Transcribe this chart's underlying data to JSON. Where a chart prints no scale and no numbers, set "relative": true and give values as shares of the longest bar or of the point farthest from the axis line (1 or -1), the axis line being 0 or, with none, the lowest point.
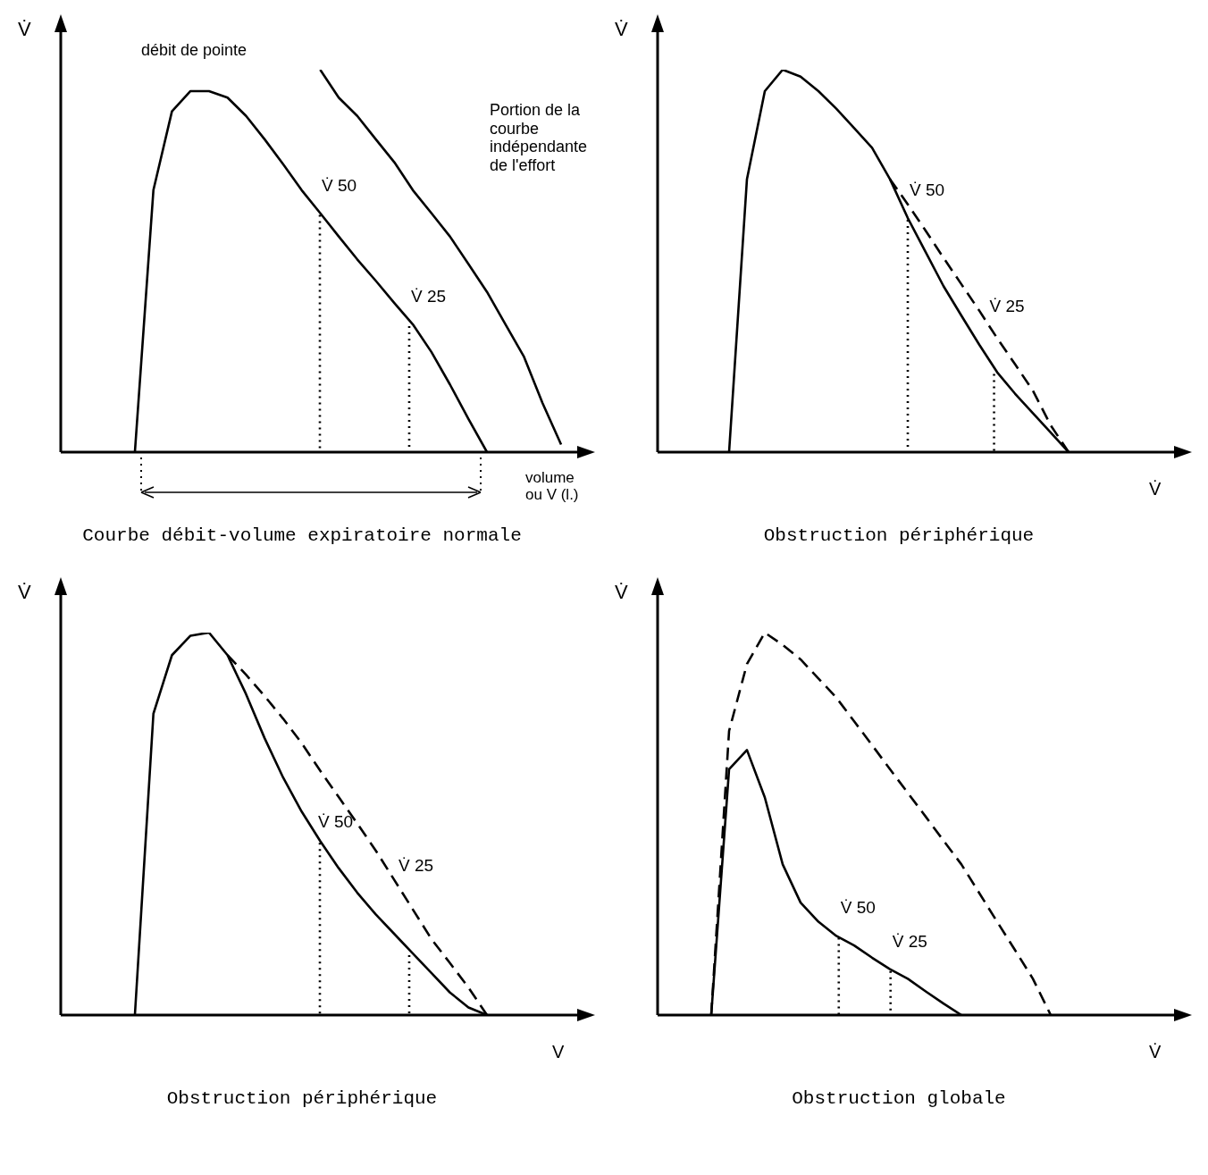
{
  "chart_data": [
    {
      "type": "line",
      "relative": true,
      "title": "Courbe débit-volume expiratoire normale",
      "xlabel": "volume ou V (l.)",
      "ylabel": "V̇",
      "legend": false,
      "grid": false,
      "marker": "none",
      "annotations": [
        "débit de pointe",
        "Portion de la courbe indépendante de l'effort",
        "V̇ 50",
        "V̇ 25"
      ],
      "categories": [
        null,
        null,
        null,
        null,
        null,
        null,
        null,
        null,
        null,
        null,
        null,
        null,
        null,
        null,
        null,
        null,
        null,
        null,
        null,
        null,
        null,
        null,
        null,
        null,
        null,
        null,
        null,
        null
      ],
      "series": [
        {
          "color": "#000000",
          "line_style": "solid",
          "values": [
            null,
            null,
            null,
            null,
            0,
            0.685,
            0.891,
            0.944,
            0.944,
            0.927,
            0.879,
            0.818,
            0.753,
            0.685,
            0.625,
            0.564,
            0.504,
            0.448,
            0.39,
            0.334,
            0.262,
            0.177,
            0.087,
            0,
            null,
            null,
            null,
            null
          ]
        },
        {
          "color": "#000000",
          "line_style": "solid",
          "values": [
            null,
            null,
            null,
            null,
            null,
            null,
            null,
            null,
            null,
            null,
            null,
            null,
            null,
            null,
            1,
            0.927,
            0.879,
            0.818,
            0.758,
            0.685,
            0.625,
            0.564,
            0.492,
            0.419,
            0.334,
            0.249,
            0.128,
            0.02
          ]
        }
      ]
    },
    {
      "type": "line",
      "relative": true,
      "title": "Obstruction périphérique",
      "xlabel": "V̇",
      "ylabel": "V̇",
      "legend": false,
      "grid": false,
      "marker": "none",
      "annotations": [
        "V̇ 50",
        "V̇ 25"
      ],
      "categories": [
        null,
        null,
        null,
        null,
        null,
        null,
        null,
        null,
        null,
        null,
        null,
        null,
        null,
        null,
        null,
        null,
        null,
        null,
        null,
        null,
        null,
        null,
        null,
        null,
        null,
        null,
        null,
        null,
        null
      ],
      "series": [
        {
          "color": "#000000",
          "line_style": "solid",
          "values": [
            null,
            null,
            null,
            null,
            0,
            0.714,
            0.944,
            1,
            0.982,
            0.944,
            0.898,
            0.847,
            0.796,
            0.714,
            0.612,
            0.523,
            0.434,
            0.357,
            0.281,
            0.209,
            0.153,
            0.102,
            0.051,
            0,
            null,
            null,
            null,
            null,
            null
          ]
        },
        {
          "color": "#000000",
          "line_style": "dashed",
          "values": [
            null,
            null,
            null,
            null,
            null,
            null,
            null,
            null,
            null,
            null,
            null,
            null,
            null,
            0.714,
            0.648,
            0.579,
            0.508,
            0.439,
            0.37,
            0.298,
            0.23,
            0.161,
            0.07,
            0,
            null,
            null,
            null,
            null,
            null
          ]
        }
      ]
    },
    {
      "type": "line",
      "relative": true,
      "title": "Obstruction périphérique",
      "xlabel": "V",
      "ylabel": "V̇",
      "legend": false,
      "grid": false,
      "marker": "none",
      "annotations": [
        "V̇ 50",
        "V̇ 25"
      ],
      "categories": [
        null,
        null,
        null,
        null,
        null,
        null,
        null,
        null,
        null,
        null,
        null,
        null,
        null,
        null,
        null,
        null,
        null,
        null,
        null,
        null,
        null,
        null,
        null,
        null,
        null,
        null,
        null,
        null
      ],
      "series": [
        {
          "color": "#000000",
          "line_style": "solid",
          "values": [
            null,
            null,
            null,
            null,
            0,
            0.788,
            0.941,
            0.992,
            1,
            0.941,
            0.839,
            0.724,
            0.621,
            0.532,
            0.455,
            0.384,
            0.32,
            0.263,
            0.212,
            0.161,
            0.11,
            0.059,
            0.02,
            0,
            null,
            null,
            null,
            null
          ]
        },
        {
          "color": "#000000",
          "line_style": "dashed",
          "values": [
            null,
            null,
            null,
            null,
            null,
            null,
            null,
            null,
            null,
            0.941,
            0.89,
            0.834,
            0.775,
            0.711,
            0.639,
            0.57,
            0.501,
            0.43,
            0.353,
            0.276,
            0.199,
            0.136,
            0.072,
            0,
            null,
            null,
            null,
            null
          ]
        }
      ]
    },
    {
      "type": "line",
      "relative": true,
      "title": "Obstruction globale",
      "xlabel": "V̇",
      "ylabel": "V̇",
      "legend": false,
      "grid": false,
      "marker": "none",
      "annotations": [
        "V̇ 50",
        "V̇ 25"
      ],
      "categories": [
        null,
        null,
        null,
        null,
        null,
        null,
        null,
        null,
        null,
        null,
        null,
        null,
        null,
        null,
        null,
        null,
        null,
        null,
        null,
        null,
        null,
        null,
        null,
        null,
        null,
        null,
        null,
        null,
        null
      ],
      "series": [
        {
          "color": "#000000",
          "line_style": "solid",
          "values": [
            null,
            null,
            null,
            0,
            0.643,
            0.693,
            0.569,
            0.394,
            0.294,
            0.244,
            0.207,
            0.182,
            0.15,
            0.12,
            0.095,
            0.062,
            0.03,
            0,
            null,
            null,
            null,
            null,
            null,
            null,
            null,
            null,
            null,
            null,
            null
          ]
        },
        {
          "color": "#000000",
          "line_style": "dashed",
          "values": [
            null,
            null,
            null,
            0,
            0.743,
            0.918,
            1,
            0.968,
            0.93,
            0.88,
            0.83,
            0.768,
            0.706,
            0.643,
            0.581,
            0.519,
            0.456,
            0.394,
            0.319,
            0.244,
            0.17,
            0.095,
            0,
            null,
            null,
            null,
            null,
            null,
            null
          ]
        }
      ]
    }
  ]
}
